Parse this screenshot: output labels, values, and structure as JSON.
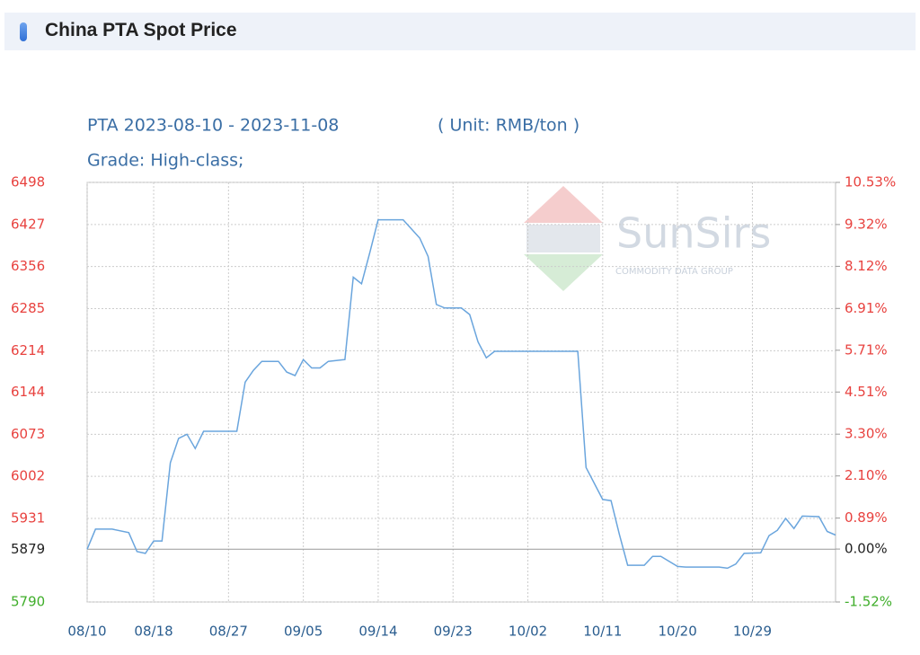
{
  "header": {
    "title": "China PTA Spot Price"
  },
  "chart_data": {
    "type": "line",
    "title": "PTA 2023-08-10 - 2023-11-08",
    "unit": "( Unit: RMB/ton )",
    "subtitle": "Grade: High-class;",
    "watermark": {
      "name": "SunSirs",
      "tagline": "COMMODITY DATA GROUP"
    },
    "x": [
      "2023-08-10",
      "2023-08-11",
      "2023-08-13",
      "2023-08-15",
      "2023-08-16",
      "2023-08-17",
      "2023-08-18",
      "2023-08-19",
      "2023-08-20",
      "2023-08-21",
      "2023-08-22",
      "2023-08-23",
      "2023-08-24",
      "2023-08-28",
      "2023-08-29",
      "2023-08-30",
      "2023-08-31",
      "2023-09-02",
      "2023-09-03",
      "2023-09-04",
      "2023-09-05",
      "2023-09-06",
      "2023-09-07",
      "2023-09-08",
      "2023-09-10",
      "2023-09-11",
      "2023-09-12",
      "2023-09-13",
      "2023-09-14",
      "2023-09-17",
      "2023-09-19",
      "2023-09-20",
      "2023-09-21",
      "2023-09-22",
      "2023-09-24",
      "2023-09-25",
      "2023-09-26",
      "2023-09-27",
      "2023-09-28",
      "2023-10-08",
      "2023-10-09",
      "2023-10-11",
      "2023-10-12",
      "2023-10-13",
      "2023-10-14",
      "2023-10-16",
      "2023-10-17",
      "2023-10-18",
      "2023-10-20",
      "2023-10-21",
      "2023-10-25",
      "2023-10-26",
      "2023-10-27",
      "2023-10-28",
      "2023-10-30",
      "2023-10-31",
      "2023-11-01",
      "2023-11-02",
      "2023-11-03",
      "2023-11-04",
      "2023-11-06",
      "2023-11-07",
      "2023-11-08"
    ],
    "series": [
      {
        "color": "#6aa5dd",
        "values": [
          5879,
          5913,
          5913,
          5907,
          5875,
          5872,
          5893,
          5893,
          6025,
          6066,
          6073,
          6049,
          6078,
          6078,
          6161,
          6181,
          6196,
          6196,
          6178,
          6172,
          6199,
          6185,
          6185,
          6196,
          6199,
          6338,
          6327,
          6380,
          6435,
          6435,
          6404,
          6373,
          6292,
          6286,
          6286,
          6275,
          6229,
          6202,
          6213,
          6213,
          6017,
          5963,
          5961,
          5904,
          5852,
          5852,
          5867,
          5867,
          5850,
          5849,
          5849,
          5847,
          5854,
          5872,
          5873,
          5902,
          5911,
          5931,
          5914,
          5935,
          5934,
          5909,
          5903
        ]
      }
    ],
    "xlim": [
      "2023-08-10",
      "2023-11-08"
    ],
    "xticks": [
      {
        "value": "2023-08-10",
        "label": "08/10"
      },
      {
        "value": "2023-08-18",
        "label": "08/18"
      },
      {
        "value": "2023-08-27",
        "label": "08/27"
      },
      {
        "value": "2023-09-05",
        "label": "09/05"
      },
      {
        "value": "2023-09-14",
        "label": "09/14"
      },
      {
        "value": "2023-09-23",
        "label": "09/23"
      },
      {
        "value": "2023-10-02",
        "label": "10/02"
      },
      {
        "value": "2023-10-11",
        "label": "10/11"
      },
      {
        "value": "2023-10-20",
        "label": "10/20"
      },
      {
        "value": "2023-10-29",
        "label": "10/29"
      }
    ],
    "ylim": [
      5790,
      6498
    ],
    "yticks": [
      6498,
      6427,
      6356,
      6285,
      6214,
      6144,
      6073,
      6002,
      5931,
      5879,
      5790
    ],
    "y2lim": [
      -1.52,
      10.53
    ],
    "y2ticks": [
      {
        "value": 10.53,
        "label": "10.53%"
      },
      {
        "value": 9.32,
        "label": "9.32%"
      },
      {
        "value": 8.12,
        "label": "8.12%"
      },
      {
        "value": 6.91,
        "label": "6.91%"
      },
      {
        "value": 5.71,
        "label": "5.71%"
      },
      {
        "value": 4.51,
        "label": "4.51%"
      },
      {
        "value": 3.3,
        "label": "3.30%"
      },
      {
        "value": 2.1,
        "label": "2.10%"
      },
      {
        "value": 0.89,
        "label": "0.89%"
      },
      {
        "value": 0.0,
        "label": "0.00%"
      },
      {
        "value": -1.52,
        "label": "-1.52%"
      }
    ],
    "baseline": 5879,
    "up_color": "#e8423f",
    "down_color": "#3fae2a",
    "baseline_color": "#222222",
    "grid": true
  }
}
